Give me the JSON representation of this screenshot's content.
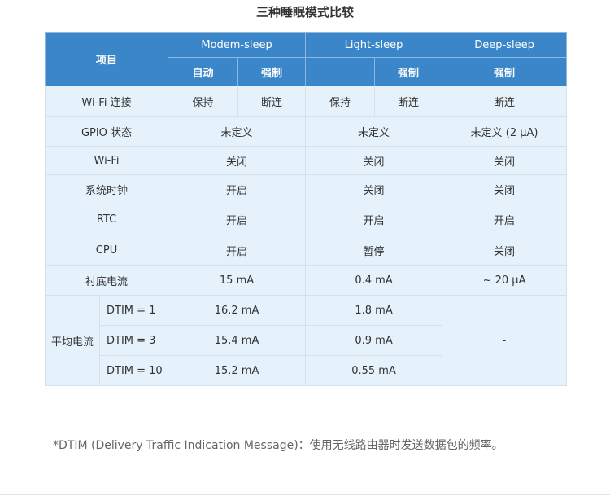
{
  "title": "三种睡眠模式比较",
  "header": {
    "item": "项目",
    "modes": [
      "Modem-sleep",
      "Light-sleep",
      "Deep-sleep"
    ],
    "sub": [
      "自动",
      "强制",
      "",
      "强制",
      "强制"
    ]
  },
  "rows": {
    "wifi_conn": {
      "label": "Wi-Fi 连接",
      "cells": [
        "保持",
        "断连",
        "保持",
        "断连",
        "断连"
      ]
    },
    "gpio": {
      "label": "GPIO 状态",
      "cells": [
        "未定义",
        "未定义",
        "未定义 (2 μA)"
      ]
    },
    "wifi": {
      "label": "Wi-Fi",
      "cells": [
        "关闭",
        "关闭",
        "关闭"
      ]
    },
    "clock": {
      "label": "系统时钟",
      "cells": [
        "开启",
        "关闭",
        "关闭"
      ]
    },
    "rtc": {
      "label": "RTC",
      "cells": [
        "开启",
        "开启",
        "开启"
      ]
    },
    "cpu": {
      "label": "CPU",
      "cells": [
        "开启",
        "暂停",
        "关闭"
      ]
    },
    "substrate": {
      "label": "衬底电流",
      "cells": [
        "15 mA",
        "0.4 mA",
        "~ 20 μA"
      ]
    },
    "avg": {
      "label": "平均电流",
      "deep": "-",
      "items": [
        {
          "dtim": "DTIM = 1",
          "modem": "16.2 mA",
          "light": "1.8 mA"
        },
        {
          "dtim": "DTIM = 3",
          "modem": "15.4 mA",
          "light": "0.9 mA"
        },
        {
          "dtim": "DTIM = 10",
          "modem": "15.2 mA",
          "light": "0.55 mA"
        }
      ]
    }
  },
  "footnote": "*DTIM (Delivery Traffic Indication Message)：使用无线路由器时发送数据包的频率。",
  "colors": {
    "header": "#3a86c8",
    "body": "#e6f2fb"
  }
}
